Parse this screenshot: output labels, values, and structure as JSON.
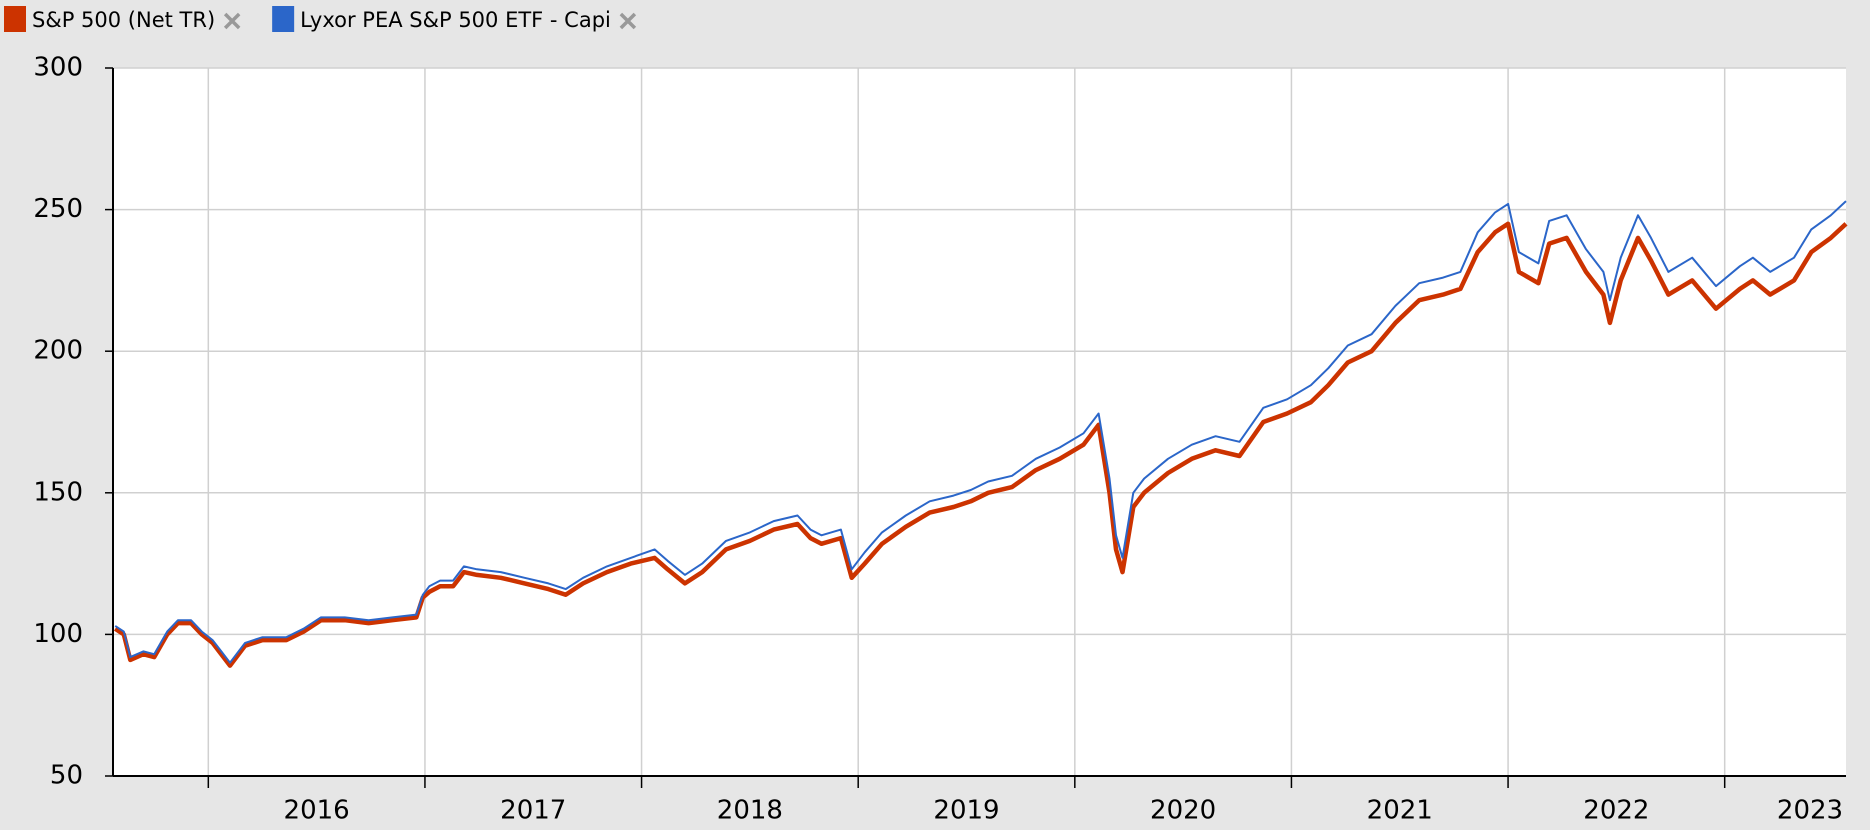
{
  "chart_data": {
    "type": "line",
    "x": [
      2015.57,
      2015.61,
      2015.64,
      2015.7,
      2015.75,
      2015.81,
      2015.86,
      2015.92,
      2015.97,
      2016.02,
      2016.06,
      2016.1,
      2016.17,
      2016.25,
      2016.36,
      2016.44,
      2016.52,
      2016.63,
      2016.74,
      2016.85,
      2016.96,
      2016.99,
      2017.02,
      2017.07,
      2017.13,
      2017.18,
      2017.24,
      2017.35,
      2017.46,
      2017.57,
      2017.65,
      2017.73,
      2017.84,
      2017.95,
      2018.06,
      2018.12,
      2018.2,
      2018.28,
      2018.39,
      2018.5,
      2018.61,
      2018.72,
      2018.78,
      2018.83,
      2018.92,
      2018.97,
      2019.03,
      2019.11,
      2019.22,
      2019.33,
      2019.44,
      2019.52,
      2019.6,
      2019.71,
      2019.82,
      2019.93,
      2020.04,
      2020.11,
      2020.16,
      2020.19,
      2020.22,
      2020.27,
      2020.32,
      2020.43,
      2020.54,
      2020.65,
      2020.76,
      2020.87,
      2020.98,
      2021.09,
      2021.17,
      2021.26,
      2021.37,
      2021.48,
      2021.59,
      2021.7,
      2021.78,
      2021.86,
      2021.94,
      2022.0,
      2022.05,
      2022.14,
      2022.19,
      2022.27,
      2022.36,
      2022.44,
      2022.47,
      2022.52,
      2022.6,
      2022.66,
      2022.74,
      2022.85,
      2022.96,
      2023.07,
      2023.13,
      2023.21,
      2023.32,
      2023.4,
      2023.49,
      2023.56
    ],
    "series": [
      {
        "name": "S&P 500 (Net TR)",
        "color": "#cc3300",
        "values": [
          102,
          100,
          91,
          93,
          92,
          100,
          104,
          104,
          100,
          97,
          93,
          89,
          96,
          98,
          98,
          101,
          105,
          105,
          104,
          105,
          106,
          113,
          115,
          117,
          117,
          122,
          121,
          120,
          118,
          116,
          114,
          118,
          122,
          125,
          127,
          123,
          118,
          122,
          130,
          133,
          137,
          139,
          134,
          132,
          134,
          120,
          125,
          132,
          138,
          143,
          145,
          147,
          150,
          152,
          158,
          162,
          167,
          174,
          150,
          130,
          122,
          145,
          150,
          157,
          162,
          165,
          163,
          175,
          178,
          182,
          188,
          196,
          200,
          210,
          218,
          220,
          222,
          235,
          242,
          245,
          228,
          224,
          238,
          240,
          228,
          220,
          210,
          225,
          240,
          232,
          220,
          225,
          215,
          222,
          225,
          220,
          225,
          235,
          240,
          245
        ]
      },
      {
        "name": "Lyxor PEA S&P 500 ETF - Capi",
        "color": "#2b66c9",
        "values": [
          103,
          101,
          92,
          94,
          93,
          101,
          105,
          105,
          101,
          98,
          94,
          90,
          97,
          99,
          99,
          102,
          106,
          106,
          105,
          106,
          107,
          114,
          117,
          119,
          119,
          124,
          123,
          122,
          120,
          118,
          116,
          120,
          124,
          127,
          130,
          126,
          121,
          125,
          133,
          136,
          140,
          142,
          137,
          135,
          137,
          123,
          129,
          136,
          142,
          147,
          149,
          151,
          154,
          156,
          162,
          166,
          171,
          178,
          155,
          135,
          127,
          150,
          155,
          162,
          167,
          170,
          168,
          180,
          183,
          188,
          194,
          202,
          206,
          216,
          224,
          226,
          228,
          242,
          249,
          252,
          235,
          231,
          246,
          248,
          236,
          228,
          218,
          233,
          248,
          240,
          228,
          233,
          223,
          230,
          233,
          228,
          233,
          243,
          248,
          253
        ]
      }
    ],
    "xlim": [
      2015.56,
      2023.56
    ],
    "xticks": [
      2016,
      2017,
      2018,
      2019,
      2020,
      2021,
      2022,
      2023
    ],
    "ylim": [
      50,
      300
    ],
    "yticks": [
      50,
      100,
      150,
      200,
      250,
      300
    ],
    "grid": true
  }
}
